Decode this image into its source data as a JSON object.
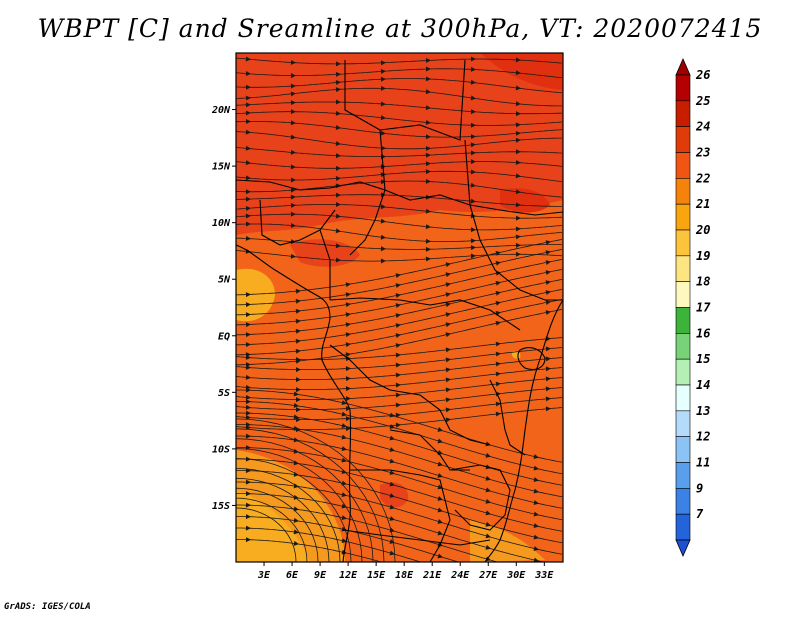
{
  "title": "WBPT [C] and Sreamline at 300hPa, VT: 2020072415",
  "credit": "GrADS: IGES/COLA",
  "map": {
    "lon_range": [
      0,
      35
    ],
    "lat_range": [
      -20,
      25
    ],
    "lat_ticks": [
      {
        "value": 20,
        "label": "20N"
      },
      {
        "value": 15,
        "label": "15N"
      },
      {
        "value": 10,
        "label": "10N"
      },
      {
        "value": 5,
        "label": "5N"
      },
      {
        "value": 0,
        "label": "EQ"
      },
      {
        "value": -5,
        "label": "5S"
      },
      {
        "value": -10,
        "label": "10S"
      },
      {
        "value": -15,
        "label": "15S"
      }
    ],
    "lon_ticks": [
      {
        "value": 3,
        "label": "3E"
      },
      {
        "value": 6,
        "label": "6E"
      },
      {
        "value": 9,
        "label": "9E"
      },
      {
        "value": 12,
        "label": "12E"
      },
      {
        "value": 15,
        "label": "15E"
      },
      {
        "value": 18,
        "label": "18E"
      },
      {
        "value": 21,
        "label": "21E"
      },
      {
        "value": 24,
        "label": "24E"
      },
      {
        "value": 27,
        "label": "27E"
      },
      {
        "value": 30,
        "label": "30E"
      },
      {
        "value": 33,
        "label": "33E"
      }
    ]
  },
  "colorbar": {
    "levels": [
      {
        "label": "26",
        "color": "#b40000"
      },
      {
        "label": "25",
        "color": "#c81e00"
      },
      {
        "label": "24",
        "color": "#e03c0a"
      },
      {
        "label": "23",
        "color": "#f05514"
      },
      {
        "label": "22",
        "color": "#f5820a"
      },
      {
        "label": "21",
        "color": "#f9a50f"
      },
      {
        "label": "20",
        "color": "#fcc33c"
      },
      {
        "label": "19",
        "color": "#fde682"
      },
      {
        "label": "18",
        "color": "#fff8be"
      },
      {
        "label": "17",
        "color": "#3cb43c"
      },
      {
        "label": "16",
        "color": "#78d278"
      },
      {
        "label": "15",
        "color": "#b4f0b4"
      },
      {
        "label": "14",
        "color": "#e6ffff"
      },
      {
        "label": "13",
        "color": "#b4dcfa"
      },
      {
        "label": "12",
        "color": "#8cc3f5"
      },
      {
        "label": "11",
        "color": "#5a9fec"
      },
      {
        "label": "9",
        "color": "#3c82e6"
      },
      {
        "label": "7",
        "color": "#2364dc"
      }
    ],
    "bottom_triangle_color": "#1e50d2",
    "top_triangle_color": "#a00000"
  },
  "field_colors": {
    "base": "#f26419",
    "warm": "#e8421a",
    "hot": "#e03010",
    "cool": "#f59a1e",
    "coolest": "#f8ad20"
  }
}
